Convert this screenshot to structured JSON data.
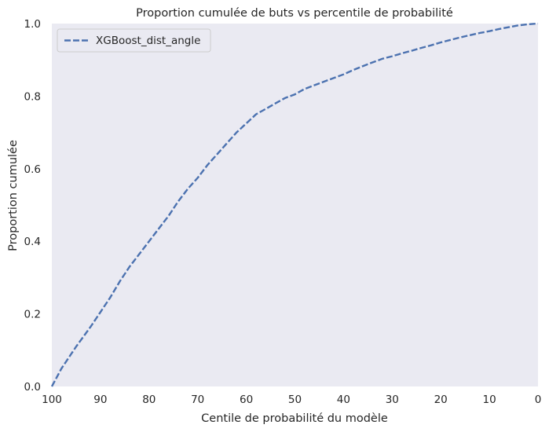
{
  "chart_data": {
    "type": "line",
    "title": "Proportion cumulée de buts vs percentile de probabilité",
    "xlabel": "Centile de probabilité du modèle",
    "ylabel": "Proportion cumulée",
    "xlim": [
      100,
      0
    ],
    "ylim": [
      0.0,
      1.0
    ],
    "x_reversed": true,
    "x_ticks": [
      "100",
      "90",
      "80",
      "70",
      "60",
      "50",
      "40",
      "30",
      "20",
      "10",
      "0"
    ],
    "y_ticks": [
      "0.0",
      "0.2",
      "0.4",
      "0.6",
      "0.8",
      "1.0"
    ],
    "grid": false,
    "legend_position": "top-left",
    "background": "#eaeaf2",
    "series": [
      {
        "name": "XGBoost_dist_angle",
        "color": "#4c72b0",
        "style": "dashed",
        "x": [
          100,
          98,
          95,
          92,
          90,
          88,
          86,
          84,
          82,
          80,
          78,
          76,
          74,
          72,
          70,
          68,
          66,
          64,
          62,
          60,
          58,
          56,
          54,
          52,
          50,
          48,
          46,
          44,
          42,
          40,
          38,
          36,
          34,
          32,
          30,
          28,
          26,
          24,
          22,
          20,
          18,
          16,
          14,
          12,
          10,
          8,
          6,
          4,
          2,
          0
        ],
        "y": [
          0.0,
          0.05,
          0.11,
          0.165,
          0.205,
          0.245,
          0.29,
          0.33,
          0.365,
          0.4,
          0.435,
          0.47,
          0.51,
          0.545,
          0.575,
          0.61,
          0.64,
          0.67,
          0.7,
          0.725,
          0.75,
          0.765,
          0.78,
          0.795,
          0.805,
          0.82,
          0.83,
          0.84,
          0.85,
          0.86,
          0.872,
          0.883,
          0.893,
          0.903,
          0.91,
          0.918,
          0.925,
          0.933,
          0.94,
          0.948,
          0.955,
          0.962,
          0.968,
          0.974,
          0.979,
          0.985,
          0.99,
          0.995,
          0.998,
          1.0
        ]
      }
    ]
  }
}
